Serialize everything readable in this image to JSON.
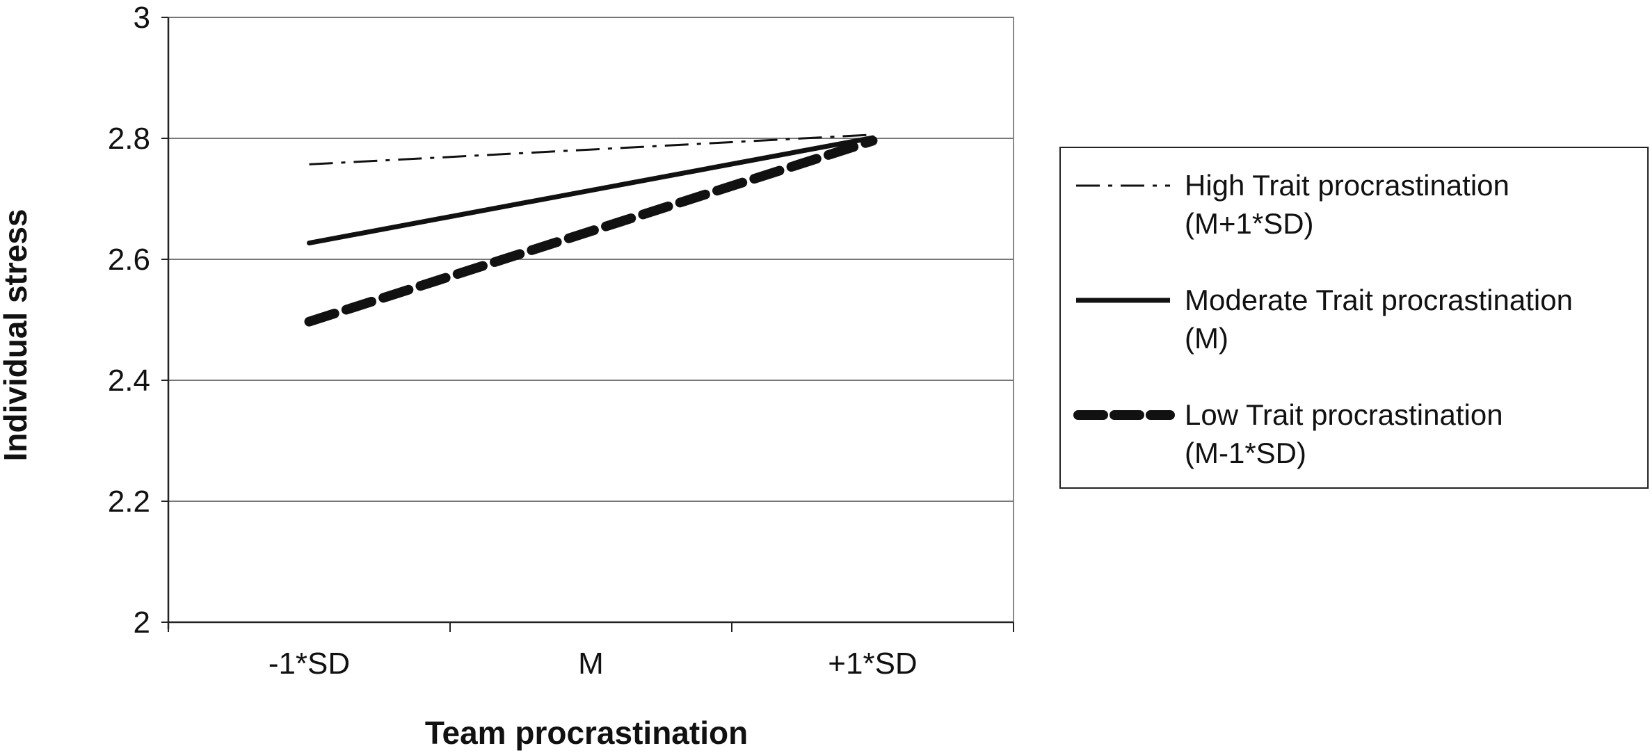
{
  "chart_data": {
    "type": "line",
    "title": "",
    "xlabel": "Team procrastination",
    "ylabel": "Individual stress",
    "categories": [
      "-1*SD",
      "M",
      "+1*SD"
    ],
    "ylim": [
      2,
      3
    ],
    "yticks": [
      "2",
      "2.2",
      "2.4",
      "2.6",
      "2.8",
      "3"
    ],
    "grid": "horizontal",
    "legend_position": "right",
    "series": [
      {
        "name_line1": "High Trait procrastination",
        "name_line2": "(M+1*SD)",
        "x": [
          "-1*SD",
          "+1*SD"
        ],
        "values": [
          2.757,
          2.806
        ],
        "style": "dash-dot",
        "color": "#111111"
      },
      {
        "name_line1": "Moderate Trait procrastination",
        "name_line2": "(M)",
        "x": [
          "-1*SD",
          "+1*SD"
        ],
        "values": [
          2.627,
          2.801
        ],
        "style": "solid",
        "color": "#111111"
      },
      {
        "name_line1": "Low Trait procrastination",
        "name_line2": "(M-1*SD)",
        "x": [
          "-1*SD",
          "+1*SD"
        ],
        "values": [
          2.497,
          2.796
        ],
        "style": "dashed-bold",
        "color": "#111111"
      }
    ]
  }
}
